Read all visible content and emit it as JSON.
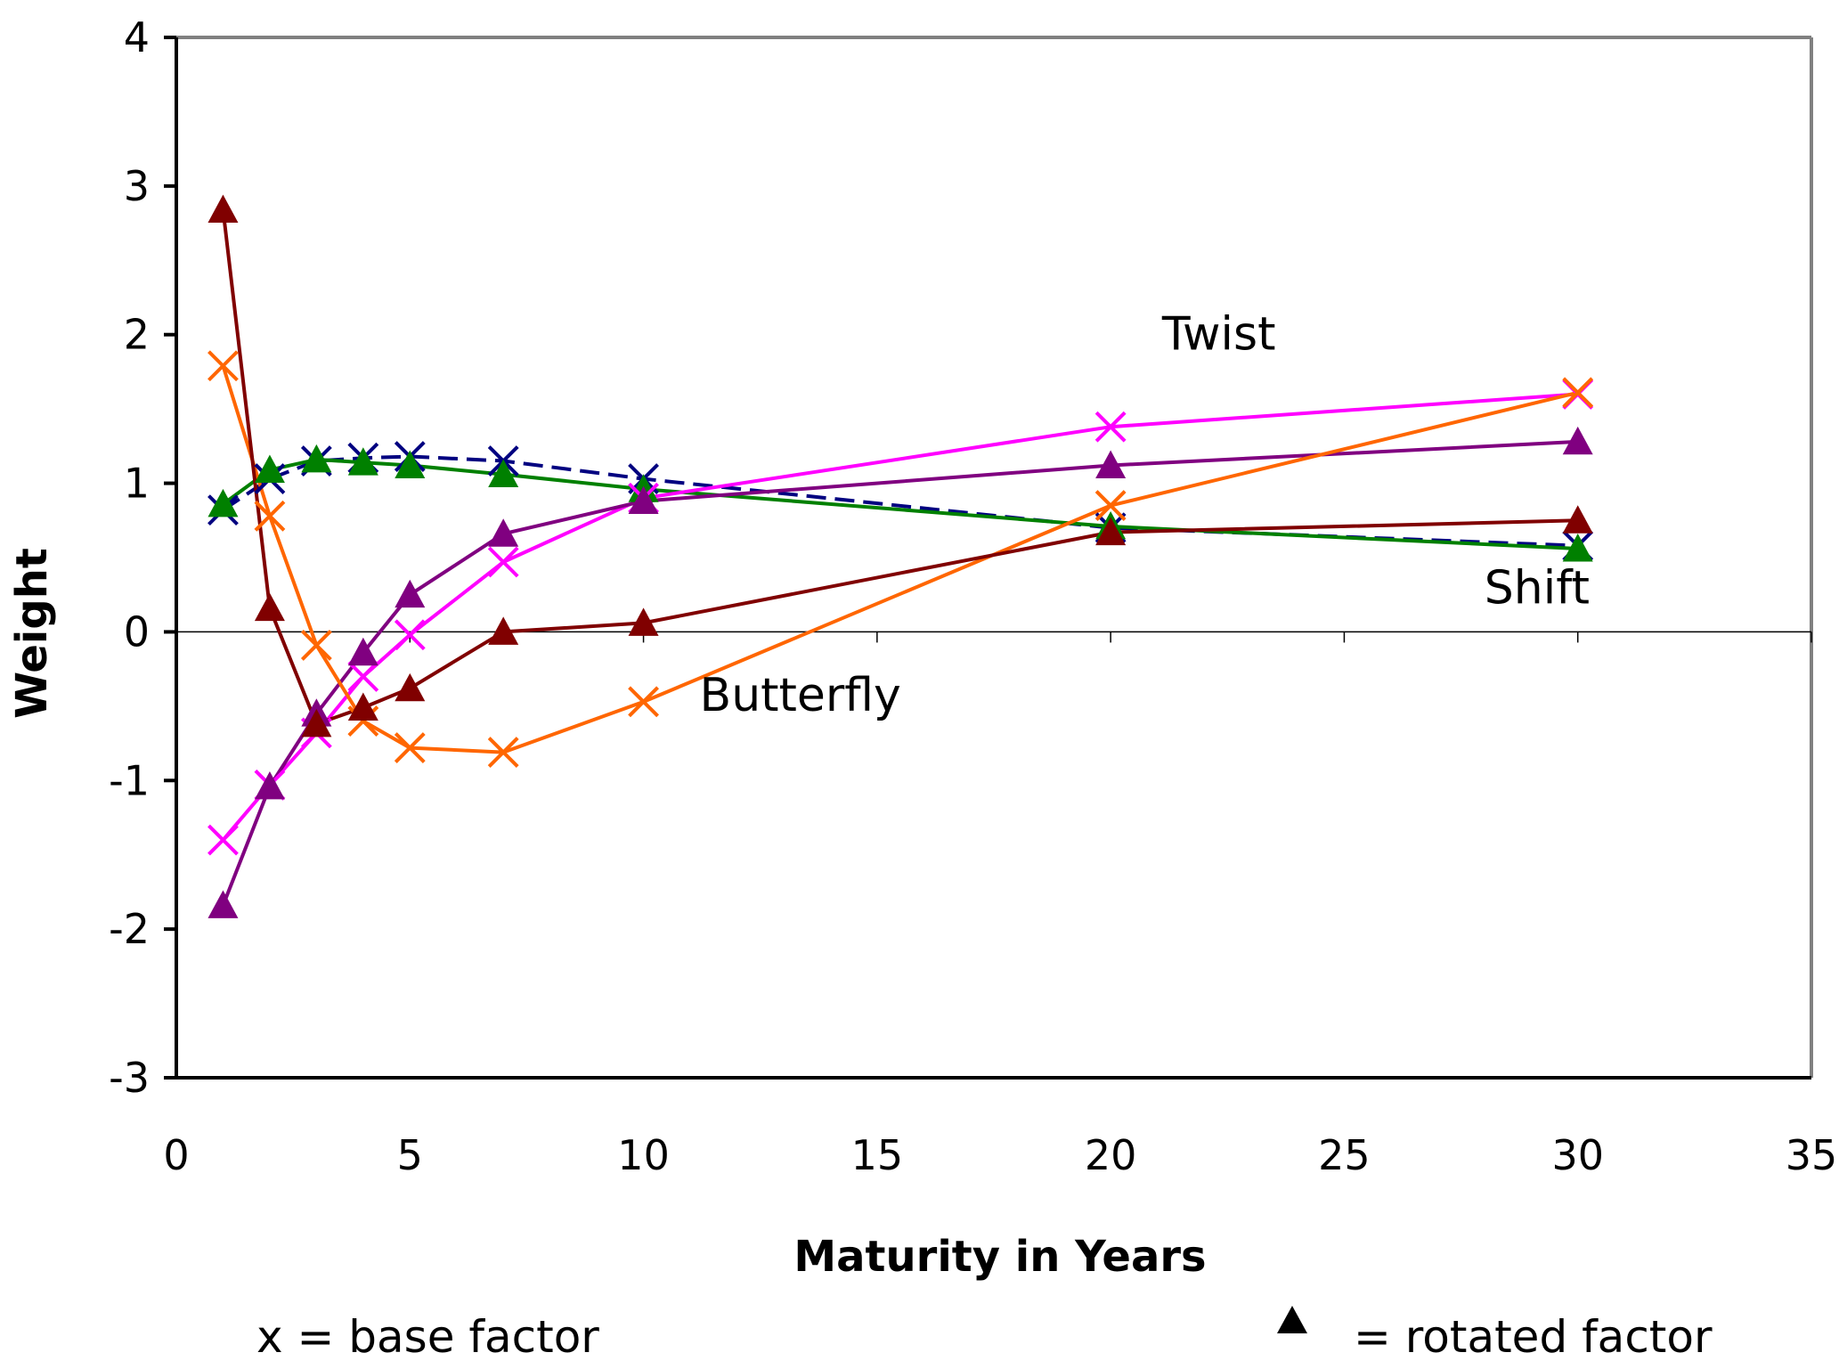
{
  "chart_data": {
    "type": "line",
    "xlabel": "Maturity in Years",
    "ylabel": "Weight",
    "xlim": [
      0,
      35
    ],
    "ylim": [
      -3,
      4
    ],
    "xticks": [
      0,
      5,
      10,
      15,
      20,
      25,
      30,
      35
    ],
    "yticks": [
      -3,
      -2,
      -1,
      0,
      1,
      2,
      3,
      4
    ],
    "grid": false,
    "x": [
      1,
      2,
      3,
      4,
      5,
      7,
      10,
      20,
      30
    ],
    "series": [
      {
        "name": "",
        "marker": "x",
        "color": "#000080",
        "dashed": true,
        "values": [
          0.82,
          1.03,
          1.15,
          1.17,
          1.18,
          1.15,
          1.03,
          0.7,
          0.58
        ]
      },
      {
        "name": "",
        "marker": "triangle",
        "color": "#008000",
        "dashed": false,
        "values": [
          0.86,
          1.09,
          1.16,
          1.14,
          1.12,
          1.06,
          0.96,
          0.71,
          0.56
        ]
      },
      {
        "name": "",
        "marker": "x",
        "color": "#FF00FF",
        "dashed": false,
        "values": [
          -1.4,
          -1.03,
          -0.68,
          -0.3,
          -0.02,
          0.47,
          0.9,
          1.38,
          1.6
        ]
      },
      {
        "name": "",
        "marker": "triangle",
        "color": "#800080",
        "dashed": false,
        "values": [
          -1.84,
          -1.04,
          -0.55,
          -0.14,
          0.25,
          0.66,
          0.88,
          1.12,
          1.28
        ]
      },
      {
        "name": "",
        "marker": "x",
        "color": "#FF6600",
        "dashed": false,
        "values": [
          1.79,
          0.78,
          -0.09,
          -0.6,
          -0.78,
          -0.81,
          -0.47,
          0.85,
          1.61
        ]
      },
      {
        "name": "",
        "marker": "triangle",
        "color": "#800000",
        "dashed": false,
        "values": [
          2.84,
          0.16,
          -0.62,
          -0.51,
          -0.38,
          0.0,
          0.06,
          0.67,
          0.75
        ]
      }
    ],
    "annotations": [
      {
        "text": "Twist",
        "x": 21.1,
        "y": 1.9
      },
      {
        "text": "Shift",
        "x": 28.0,
        "y": 0.19
      },
      {
        "text": "Butterfly",
        "x": 11.2,
        "y": -0.53
      }
    ],
    "legend": {
      "base_label": "x = base factor",
      "rotated_label": "= rotated factor"
    }
  }
}
